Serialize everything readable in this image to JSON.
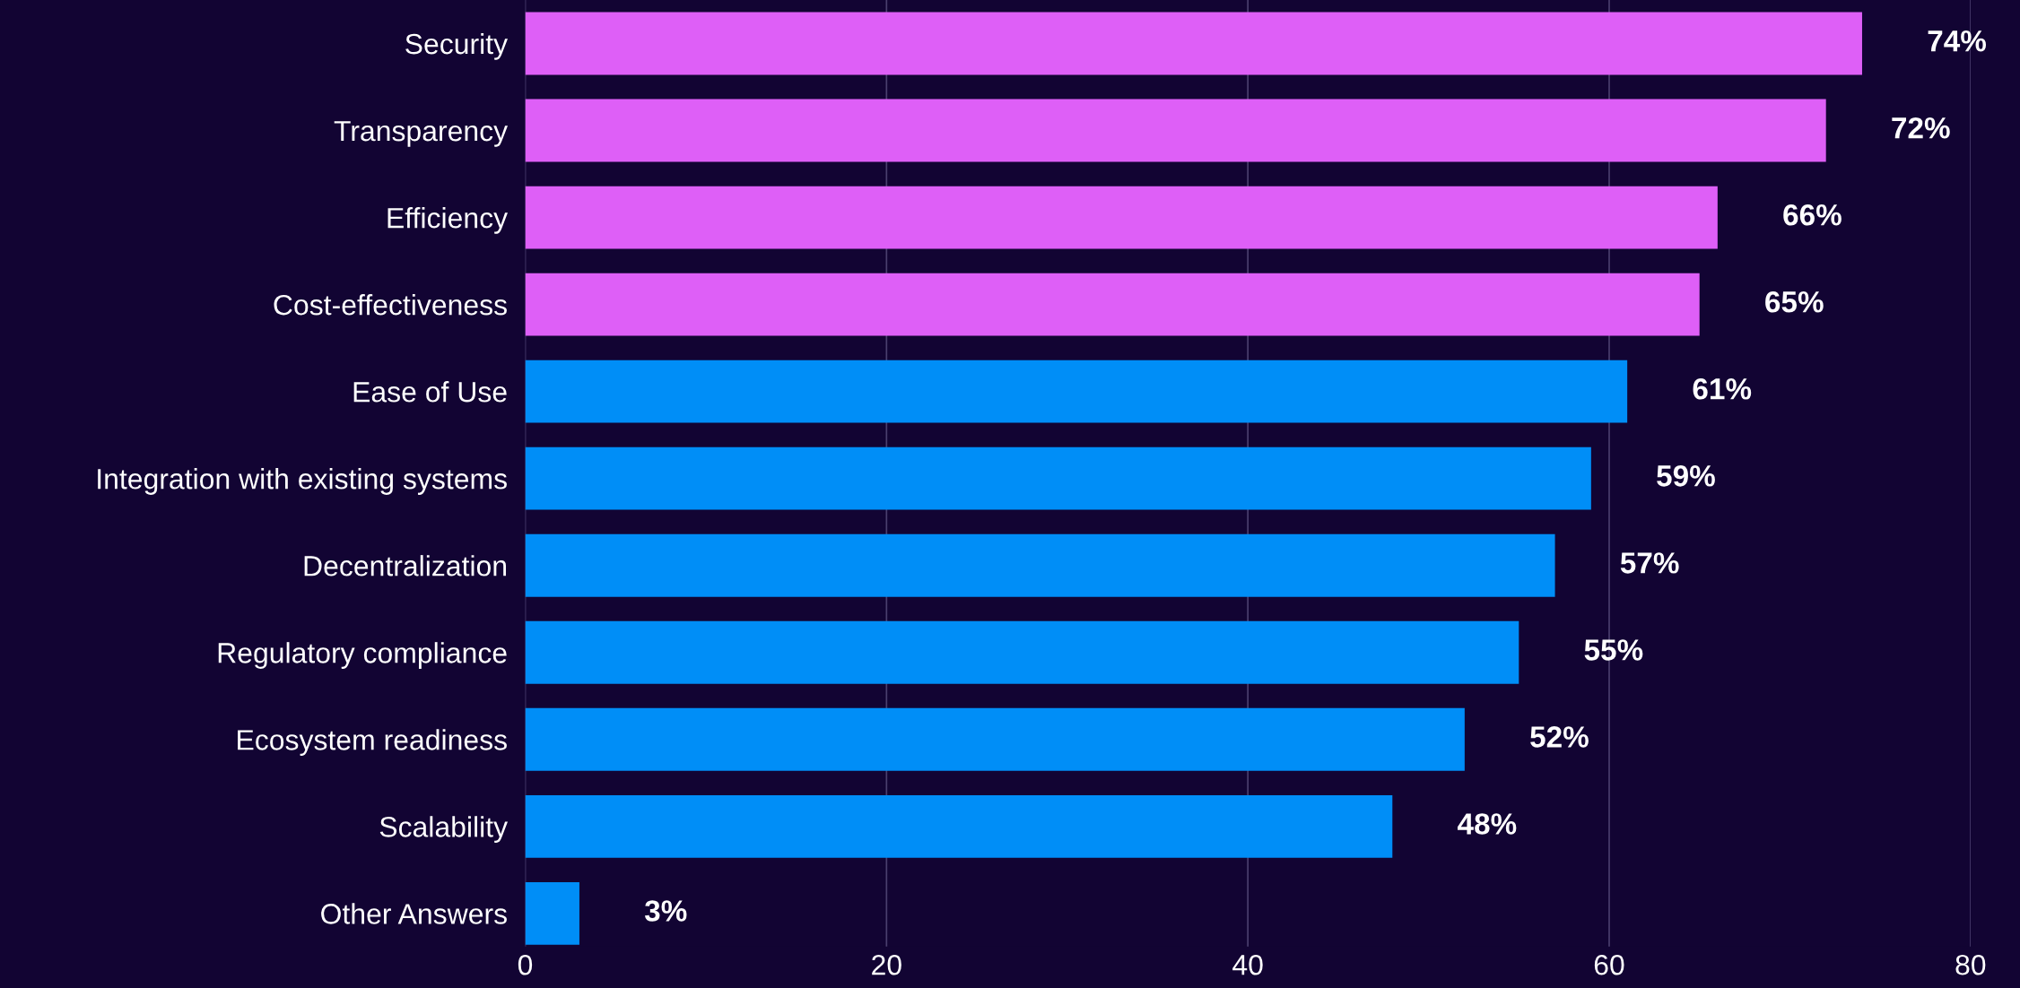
{
  "chart_data": {
    "type": "bar",
    "orientation": "horizontal",
    "categories": [
      "Security",
      "Transparency",
      "Efficiency",
      "Cost-effectiveness",
      "Ease of Use",
      "Integration with existing systems",
      "Decentralization",
      "Regulatory compliance",
      "Ecosystem readiness",
      "Scalability",
      "Other Answers"
    ],
    "values": [
      74,
      72,
      66,
      65,
      61,
      59,
      57,
      55,
      52,
      48,
      3
    ],
    "colors": [
      "#de5ff7",
      "#de5ff7",
      "#de5ff7",
      "#de5ff7",
      "#008ef7",
      "#008ef7",
      "#008ef7",
      "#008ef7",
      "#008ef7",
      "#008ef7",
      "#008ef7"
    ],
    "value_labels": [
      "74%",
      "72%",
      "66%",
      "65%",
      "61%",
      "59%",
      "57%",
      "55%",
      "52%",
      "48%",
      "3%"
    ],
    "xlim": [
      0,
      80
    ],
    "xticks": [
      0,
      20,
      40,
      60,
      80
    ],
    "grid": "x",
    "legend": false
  }
}
